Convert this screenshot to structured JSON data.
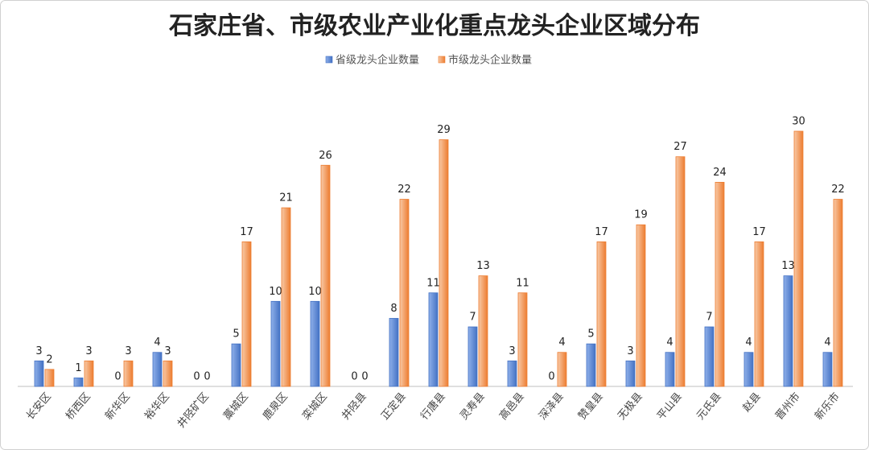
{
  "chart_data": {
    "type": "bar",
    "title": "石家庄省、市级农业产业化重点龙头企业区域分布",
    "categories": [
      "长安区",
      "桥西区",
      "新华区",
      "裕华区",
      "井陉矿区",
      "藁城区",
      "鹿泉区",
      "栾城区",
      "井陉县",
      "正定县",
      "行唐县",
      "灵寿县",
      "高邑县",
      "深泽县",
      "赞皇县",
      "无极县",
      "平山县",
      "元氏县",
      "赵县",
      "晋州市",
      "新乐市"
    ],
    "series": [
      {
        "name": "省级龙头企业数量",
        "color": "#4472c4",
        "values": [
          3,
          1,
          0,
          4,
          0,
          5,
          10,
          10,
          0,
          8,
          11,
          7,
          3,
          0,
          5,
          3,
          4,
          7,
          4,
          13,
          4
        ]
      },
      {
        "name": "市级龙头企业数量",
        "color": "#ed7d31",
        "values": [
          2,
          3,
          3,
          3,
          0,
          17,
          21,
          26,
          0,
          22,
          29,
          13,
          11,
          4,
          17,
          19,
          27,
          24,
          17,
          30,
          22
        ]
      }
    ]
  }
}
